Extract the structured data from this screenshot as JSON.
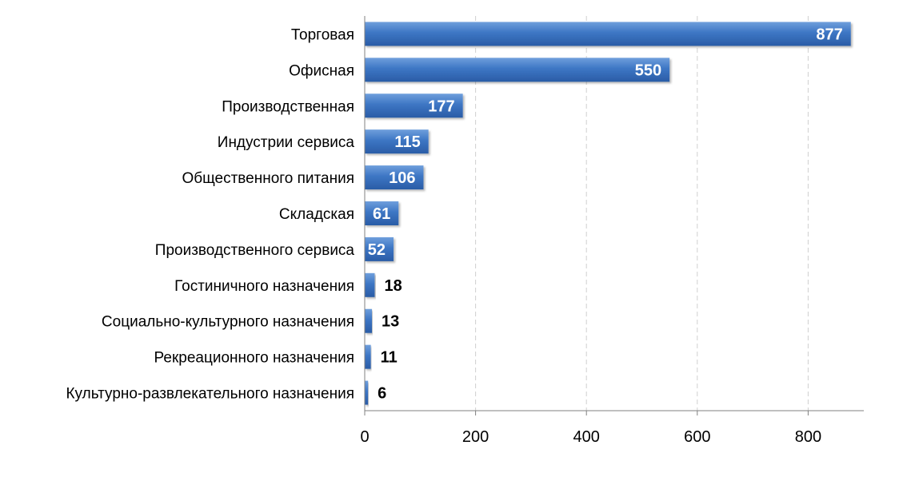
{
  "chart_data": {
    "type": "bar",
    "orientation": "horizontal",
    "categories": [
      "Торговая",
      "Офисная",
      "Производственная",
      "Индустрии сервиса",
      "Общественного питания",
      "Складская",
      "Производственного сервиса",
      "Гостиничного назначения",
      "Социально-культурного назначения",
      "Рекреационного назначения",
      "Культурно-развлекательного назначения"
    ],
    "values": [
      877,
      550,
      177,
      115,
      106,
      61,
      52,
      18,
      13,
      11,
      6
    ],
    "data_labels": [
      "877",
      "550",
      "177",
      "115",
      "106",
      "61",
      "52",
      "18",
      "13",
      "11",
      "6"
    ],
    "xlim": [
      0,
      900
    ],
    "x_ticks": [
      0,
      200,
      400,
      600,
      800
    ],
    "x_tick_labels": [
      "0",
      "200",
      "400",
      "600",
      "800"
    ],
    "title": "",
    "xlabel": "",
    "ylabel": "",
    "grid": "vertical dashed",
    "legend": "none",
    "colors": {
      "bar_light": "#6f9fdc",
      "bar_main": "#3d76c4",
      "bar_dark": "#2a5ca6",
      "label_inside": "#ffffff",
      "label_outside": "#000000",
      "grid": "#d0d0d0",
      "axis": "#808080"
    }
  }
}
